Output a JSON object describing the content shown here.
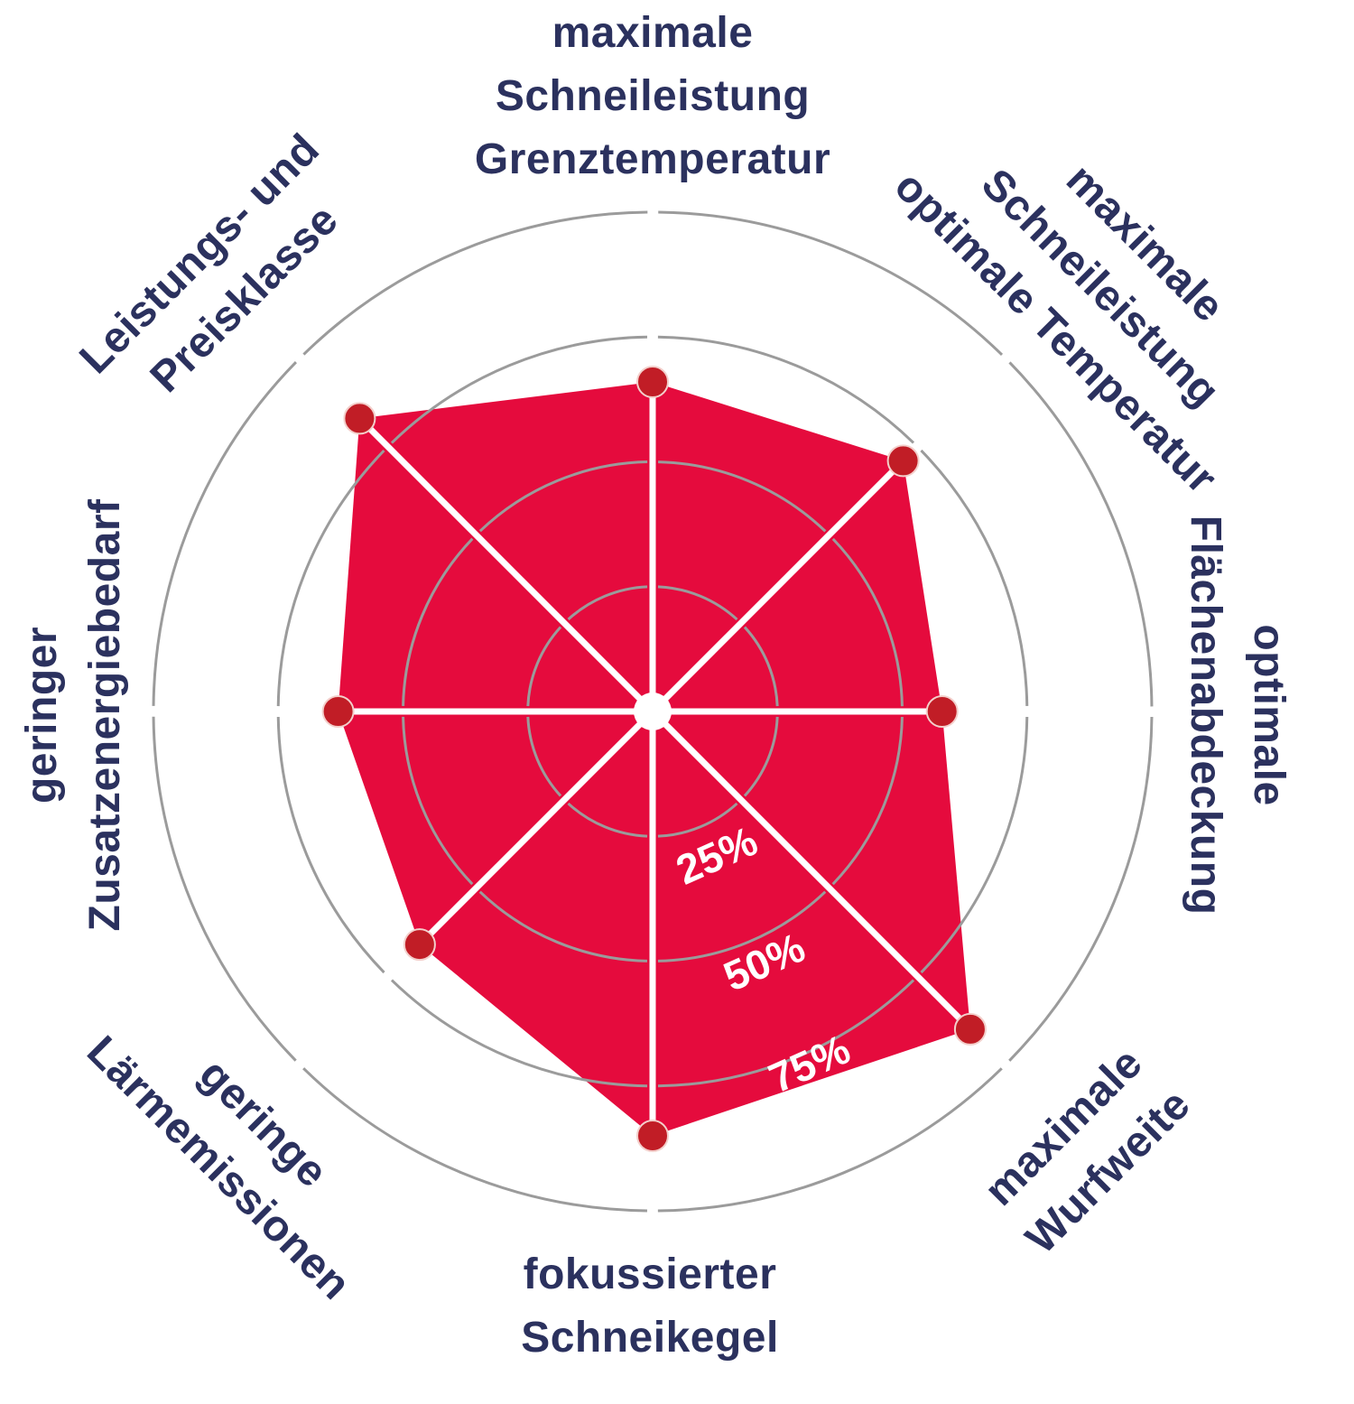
{
  "chart_data": {
    "type": "radar",
    "max_pct": 100,
    "start_axis": "top",
    "direction": "clockwise",
    "grid": "circular, rings at 25/50/75/100 percent with small gaps at each spoke angle",
    "legend": "none",
    "axes": [
      {
        "id": "grenztemperatur",
        "lines": [
          "maximale",
          "Schneileistung",
          "Grenztemperatur"
        ],
        "label": "maximale Schneileistung Grenztemperatur",
        "value_pct": 66
      },
      {
        "id": "optimale-temperatur",
        "lines": [
          "maximale",
          "Schneileistung",
          "optimale Temperatur"
        ],
        "label": "maximale Schneileistung optimale Temperatur",
        "value_pct": 71
      },
      {
        "id": "flaechenabdeckung",
        "lines": [
          "optimale",
          "Flächenabdeckung"
        ],
        "label": "optimale Flächenabdeckung",
        "value_pct": 58
      },
      {
        "id": "wurfweite",
        "lines": [
          "maximale",
          "Wurfweite"
        ],
        "label": "maximale Wurfweite",
        "value_pct": 90
      },
      {
        "id": "schneikegel",
        "lines": [
          "fokussierter",
          "Schneikegel"
        ],
        "label": "fokussierter Schneikegel",
        "value_pct": 85
      },
      {
        "id": "laermemissionen",
        "lines": [
          "geringe",
          "Lärmemissionen"
        ],
        "label": "geringe Lärmemissionen",
        "value_pct": 66
      },
      {
        "id": "zusatzenergiebedarf",
        "lines": [
          "geringer",
          "Zusatzenergiebedarf"
        ],
        "label": "geringer Zusatzenergiebedarf",
        "value_pct": 63
      },
      {
        "id": "preisklasse",
        "lines": [
          "Leistungs- und",
          "Preisklasse"
        ],
        "label": "Leistungs- und Preisklasse",
        "value_pct": 83
      }
    ],
    "rings": [
      {
        "pct": 25,
        "label": "25%"
      },
      {
        "pct": 50,
        "label": "50%"
      },
      {
        "pct": 75,
        "label": "75%"
      },
      {
        "pct": 100,
        "label": ""
      }
    ],
    "colors": {
      "area": "#e50b3d",
      "points": "#c11d26",
      "point_outline": "#f3cfcb",
      "grid": "#9b9b9b",
      "spoke": "#ffffff",
      "center_dot": "#ffffff",
      "axis_label": "#2b315e",
      "ring_label": "#ffffff"
    }
  }
}
